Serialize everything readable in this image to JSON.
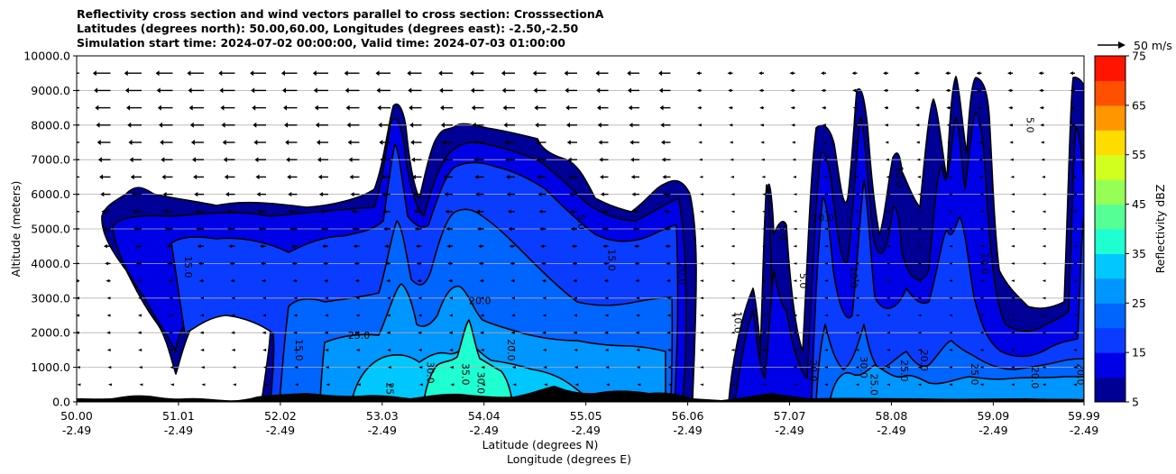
{
  "title_lines": [
    "Reflectivity cross section and wind vectors parallel to cross section: CrosssectionA",
    "Latitudes (degrees north): 50.00,60.00, Longitudes (degrees east): -2.50,-2.50",
    "Simulation start time: 2024-07-02 00:00:00, Valid time: 2024-07-03 01:00:00"
  ],
  "chart_data": {
    "type": "filled-contour cross section with wind vectors",
    "xlabel": "Latitude (degrees N)",
    "xlabel2": "Longitude (degrees E)",
    "ylabel": "Altitude (meters)",
    "xlim": [
      50.0,
      59.99
    ],
    "ylim": [
      0,
      10000
    ],
    "x_ticks": [
      {
        "lat": "50.00",
        "lon": "-2.49",
        "value": 50.0
      },
      {
        "lat": "51.01",
        "lon": "-2.49",
        "value": 51.01
      },
      {
        "lat": "52.02",
        "lon": "-2.49",
        "value": 52.02
      },
      {
        "lat": "53.03",
        "lon": "-2.49",
        "value": 53.03
      },
      {
        "lat": "54.04",
        "lon": "-2.49",
        "value": 54.04
      },
      {
        "lat": "55.05",
        "lon": "-2.49",
        "value": 55.05
      },
      {
        "lat": "56.06",
        "lon": "-2.49",
        "value": 56.06
      },
      {
        "lat": "57.07",
        "lon": "-2.49",
        "value": 57.07
      },
      {
        "lat": "58.08",
        "lon": "-2.49",
        "value": 58.08
      },
      {
        "lat": "59.09",
        "lon": "-2.49",
        "value": 59.09
      },
      {
        "lat": "59.99",
        "lon": "-2.49",
        "value": 59.99
      }
    ],
    "y_ticks": [
      {
        "label": "0.0",
        "value": 0
      },
      {
        "label": "1000.0",
        "value": 1000
      },
      {
        "label": "2000.0",
        "value": 2000
      },
      {
        "label": "3000.0",
        "value": 3000
      },
      {
        "label": "4000.0",
        "value": 4000
      },
      {
        "label": "5000.0",
        "value": 5000
      },
      {
        "label": "6000.0",
        "value": 6000
      },
      {
        "label": "7000.0",
        "value": 7000
      },
      {
        "label": "8000.0",
        "value": 8000
      },
      {
        "label": "9000.0",
        "value": 9000
      },
      {
        "label": "10000.0",
        "value": 10000
      }
    ],
    "grid": "horizontal",
    "colorbar": {
      "label": "Reflectivity dBZ",
      "levels": [
        5,
        10,
        15,
        20,
        25,
        30,
        35,
        40,
        45,
        50,
        55,
        60,
        65,
        70,
        75
      ],
      "tick_labels": [
        "5",
        "15",
        "25",
        "35",
        "45",
        "55",
        "65",
        "75"
      ],
      "tick_values": [
        5,
        15,
        25,
        35,
        45,
        55,
        65,
        75
      ],
      "colors": [
        "#000096",
        "#0000e6",
        "#0a3cff",
        "#0064ff",
        "#0096ff",
        "#00c8ff",
        "#1effd2",
        "#55ff96",
        "#96ff55",
        "#d2ff1e",
        "#ffdc00",
        "#ff9600",
        "#ff5000",
        "#ff1400",
        "#a00000"
      ]
    },
    "wind_key": {
      "label": "50 m/s",
      "speed": 50
    },
    "contour_labels": [
      {
        "text": "15.0",
        "x": 51.1,
        "y": 3900,
        "rot": 90
      },
      {
        "text": "25.0",
        "x": 52.8,
        "y": 1900,
        "rot": 0
      },
      {
        "text": "15.0",
        "x": 52.2,
        "y": 1500,
        "rot": 90
      },
      {
        "text": "20.0",
        "x": 54.0,
        "y": 2900,
        "rot": 0
      },
      {
        "text": "25.0",
        "x": 53.1,
        "y": 250,
        "rot": 90
      },
      {
        "text": "30.0",
        "x": 53.5,
        "y": 850,
        "rot": 90
      },
      {
        "text": "35.0",
        "x": 53.85,
        "y": 800,
        "rot": 90
      },
      {
        "text": "30.0",
        "x": 54.0,
        "y": 550,
        "rot": 90
      },
      {
        "text": "20.0",
        "x": 54.3,
        "y": 1500,
        "rot": 90
      },
      {
        "text": "5.0",
        "x": 55.0,
        "y": 5200,
        "rot": 90
      },
      {
        "text": "15.0",
        "x": 55.3,
        "y": 4100,
        "rot": 90
      },
      {
        "text": "20.0",
        "x": 56.0,
        "y": 3700,
        "rot": 90
      },
      {
        "text": "10.0",
        "x": 56.55,
        "y": 2300,
        "rot": 90
      },
      {
        "text": "5.0",
        "x": 57.0,
        "y": 4900,
        "rot": 90
      },
      {
        "text": "10.0",
        "x": 57.4,
        "y": 5300,
        "rot": 0
      },
      {
        "text": "5.0",
        "x": 57.2,
        "y": 3500,
        "rot": 90
      },
      {
        "text": "10.0",
        "x": 57.7,
        "y": 3600,
        "rot": 90
      },
      {
        "text": "20.0",
        "x": 57.3,
        "y": 900,
        "rot": 90
      },
      {
        "text": "25.0",
        "x": 57.9,
        "y": 500,
        "rot": 90
      },
      {
        "text": "30.0",
        "x": 57.8,
        "y": 1000,
        "rot": 90
      },
      {
        "text": "25.0",
        "x": 58.2,
        "y": 900,
        "rot": 90
      },
      {
        "text": "20.0",
        "x": 58.4,
        "y": 1200,
        "rot": 90
      },
      {
        "text": "25.0",
        "x": 58.9,
        "y": 800,
        "rot": 90
      },
      {
        "text": "10.0",
        "x": 58.15,
        "y": 6500,
        "rot": 90
      },
      {
        "text": "10.0",
        "x": 59.0,
        "y": 4000,
        "rot": 90
      },
      {
        "text": "5.0",
        "x": 59.45,
        "y": 8000,
        "rot": 90
      },
      {
        "text": "20.0",
        "x": 59.5,
        "y": 700,
        "rot": 90
      },
      {
        "text": "20.0",
        "x": 59.95,
        "y": 800,
        "rot": 90
      }
    ]
  }
}
